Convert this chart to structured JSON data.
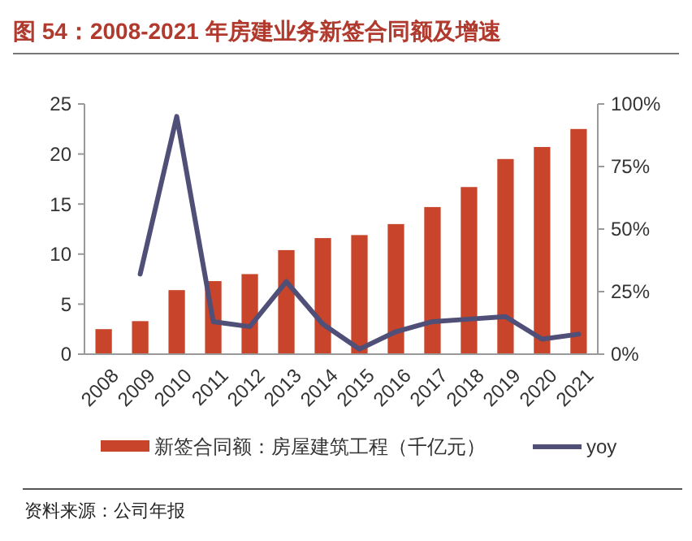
{
  "chart_data": {
    "type": "bar",
    "title": "图 54：2008-2021 年房建业务新签合同额及增速",
    "categories": [
      "2008",
      "2009",
      "2010",
      "2011",
      "2012",
      "2013",
      "2014",
      "2015",
      "2016",
      "2017",
      "2018",
      "2019",
      "2020",
      "2021"
    ],
    "series": [
      {
        "name": "新签合同额：房屋建筑工程（千亿元）",
        "color": "#c8442a",
        "values": [
          2.5,
          3.3,
          6.4,
          7.3,
          8.0,
          10.4,
          11.6,
          11.9,
          13.0,
          14.7,
          16.7,
          19.5,
          20.7,
          22.5
        ]
      },
      {
        "name": "yoy",
        "type": "line",
        "axis": "y2",
        "color": "#4f4f78",
        "values": [
          null,
          32,
          95,
          13,
          11,
          29,
          12,
          2,
          9,
          13,
          14,
          15,
          6,
          8
        ]
      }
    ],
    "ylim": [
      0,
      25
    ],
    "yticks": [
      0,
      5,
      10,
      15,
      20,
      25
    ],
    "y2lim": [
      0,
      100
    ],
    "y2ticks": [
      {
        "value": 0,
        "label": "0%"
      },
      {
        "value": 25,
        "label": "25%"
      },
      {
        "value": 50,
        "label": "50%"
      },
      {
        "value": 75,
        "label": "75%"
      },
      {
        "value": 100,
        "label": "100%"
      }
    ],
    "legend": "bottom",
    "marker": "none",
    "line_style": "solid",
    "annotations": [
      "资料来源：公司年报"
    ]
  }
}
